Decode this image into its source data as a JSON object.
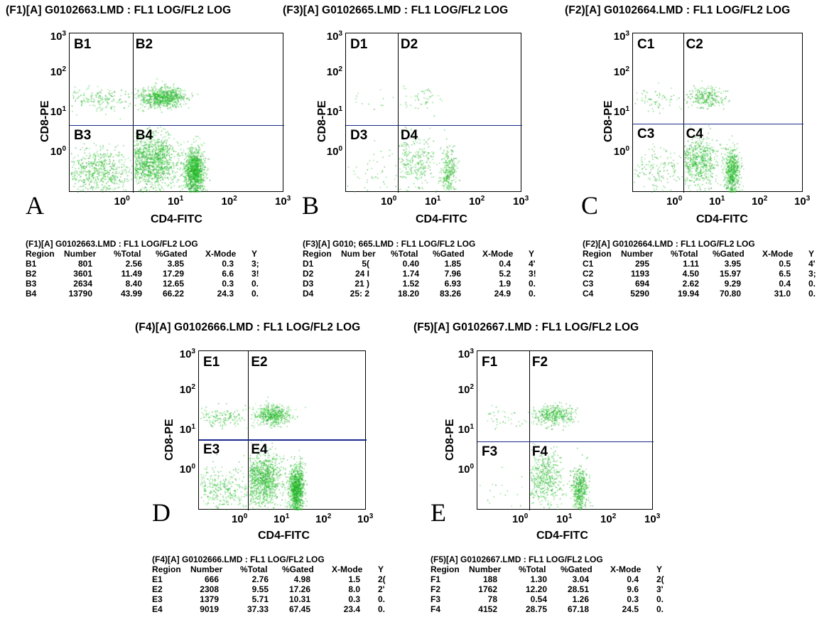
{
  "panels": [
    {
      "id": "A",
      "title": "(F1)[A] G0102663.LMD : FL1 LOG/FL2 LOG",
      "letter": "A",
      "quads": [
        "B1",
        "B2",
        "B3",
        "B4"
      ],
      "xlabel": "CD4-FITC",
      "ylabel": "CD8-PE",
      "table": {
        "title": "(F1)[A] G0102663.LMD : FL1 LOG/FL2 LOG",
        "headers": [
          "Region",
          "Number",
          "%Total",
          "%Gated",
          "X-Mode",
          "Y"
        ],
        "rows": [
          [
            "B1",
            "801",
            "2.56",
            "3.85",
            "0.3",
            "3;"
          ],
          [
            "B2",
            "3601",
            "11.49",
            "17.29",
            "6.6",
            "3!"
          ],
          [
            "B3",
            "2634",
            "8.40",
            "12.65",
            "0.3",
            "0."
          ],
          [
            "B4",
            "13790",
            "43.99",
            "66.22",
            "24.3",
            "0."
          ]
        ]
      }
    },
    {
      "id": "B",
      "title": "(F3)[A] G0102665.LMD : FL1 LOG/FL2 LOG",
      "letter": "B",
      "quads": [
        "D1",
        "D2",
        "D3",
        "D4"
      ],
      "xlabel": "CD4-FITC",
      "ylabel": "CD8-PE",
      "table": {
        "title": "(F3)[A] G010; 665.LMD : FL1 LOG/FL2 LOG",
        "headers": [
          "Region",
          "Num ber",
          "%Total",
          "%Gated",
          "X-Mode",
          "Y"
        ],
        "rows": [
          [
            "D1",
            "5(",
            "0.40",
            "1.85",
            "0.4",
            "4'"
          ],
          [
            "D2",
            "24 I",
            "1.74",
            "7.96",
            "5.2",
            "3!"
          ],
          [
            "D3",
            "21 )",
            "1.52",
            "6.93",
            "1.9",
            "0."
          ],
          [
            "D4",
            "25: 2",
            "18.20",
            "83.26",
            "24.9",
            "0."
          ]
        ]
      }
    },
    {
      "id": "C",
      "title": "(F2)[A] G0102664.LMD : FL1 LOG/FL2 LOG",
      "letter": "C",
      "quads": [
        "C1",
        "C2",
        "C3",
        "C4"
      ],
      "xlabel": "CD4-FITC",
      "ylabel": "CD8-PE",
      "table": {
        "title": "(F2)[A] G0102664.LMD : FL1 LOG/FL2 LOG",
        "headers": [
          "Region",
          "Number",
          "%Total",
          "%Gated",
          "X-Mode",
          "Y"
        ],
        "rows": [
          [
            "C1",
            "295",
            "1.11",
            "3.95",
            "0.5",
            "4'"
          ],
          [
            "C2",
            "1193",
            "4.50",
            "15.97",
            "6.5",
            "3;"
          ],
          [
            "C3",
            "694",
            "2.62",
            "9.29",
            "0.4",
            "0."
          ],
          [
            "C4",
            "5290",
            "19.94",
            "70.80",
            "31.0",
            "0."
          ]
        ]
      }
    },
    {
      "id": "D",
      "title": "(F4)[A] G0102666.LMD : FL1 LOG/FL2 LOG",
      "letter": "D",
      "quads": [
        "E1",
        "E2",
        "E3",
        "E4"
      ],
      "xlabel": "CD4-FITC",
      "ylabel": "CD8-PE",
      "table": {
        "title": "(F4)[A] G0102666.LMD : FL1 LOG/FL2 LOG",
        "headers": [
          "Region",
          "Number",
          "%Total",
          "%Gated",
          "X-Mode",
          "Y"
        ],
        "rows": [
          [
            "E1",
            "666",
            "2.76",
            "4.98",
            "1.5",
            "2("
          ],
          [
            "E2",
            "2308",
            "9.55",
            "17.26",
            "8.0",
            "2'"
          ],
          [
            "E3",
            "1379",
            "5.71",
            "10.31",
            "0.3",
            "0."
          ],
          [
            "E4",
            "9019",
            "37.33",
            "67.45",
            "23.4",
            "0."
          ]
        ]
      }
    },
    {
      "id": "E",
      "title": "(F5)[A] G0102667.LMD : FL1 LOG/FL2 LOG",
      "letter": "E",
      "quads": [
        "F1",
        "F2",
        "F3",
        "F4"
      ],
      "xlabel": "CD4-FITC",
      "ylabel": "CD8-PE",
      "table": {
        "title": "(F5)[A] G0102667.LMD : FL1 LOG/FL2 LOG",
        "headers": [
          "Region",
          "Number",
          "%Total",
          "%Gated",
          "X-Mode",
          "Y"
        ],
        "rows": [
          [
            "F1",
            "188",
            "1.30",
            "3.04",
            "0.4",
            "2("
          ],
          [
            "F2",
            "1762",
            "12.20",
            "28.51",
            "9.6",
            "3'"
          ],
          [
            "F3",
            "78",
            "0.54",
            "1.26",
            "0.3",
            "0."
          ],
          [
            "F4",
            "4152",
            "28.75",
            "67.18",
            "24.5",
            "0."
          ]
        ]
      }
    }
  ],
  "chart_data": [
    {
      "type": "scatter",
      "title": "(F1)[A] G0102663.LMD : FL1 LOG/FL2 LOG",
      "xlabel": "CD4-FITC",
      "ylabel": "CD8-PE",
      "x_scale": "log",
      "y_scale": "log",
      "xlim": [
        0.1,
        1000
      ],
      "ylim": [
        0.1,
        1000
      ],
      "x_ticks": [
        "10^0",
        "10^1",
        "10^2",
        "10^3"
      ],
      "y_ticks": [
        "10^0",
        "10^1",
        "10^2",
        "10^3"
      ],
      "quadrant_x": 1.5,
      "quadrant_y": 5,
      "quadrant_counts": {
        "B1": 801,
        "B2": 3601,
        "B3": 2634,
        "B4": 13790
      },
      "point_color": "#22aa22"
    },
    {
      "type": "scatter",
      "title": "(F3)[A] G0102665.LMD : FL1 LOG/FL2 LOG",
      "xlabel": "CD4-FITC",
      "ylabel": "CD8-PE",
      "x_scale": "log",
      "y_scale": "log",
      "xlim": [
        0.1,
        1000
      ],
      "ylim": [
        0.1,
        1000
      ],
      "x_ticks": [
        "10^0",
        "10^1",
        "10^2",
        "10^3"
      ],
      "y_ticks": [
        "10^0",
        "10^1",
        "10^2",
        "10^3"
      ],
      "quadrant_x": 1.5,
      "quadrant_y": 5,
      "quadrant_counts": {
        "D1": 50,
        "D2": 240,
        "D3": 210,
        "D4": 2522
      },
      "point_color": "#22aa22"
    },
    {
      "type": "scatter",
      "title": "(F2)[A] G0102664.LMD : FL1 LOG/FL2 LOG",
      "xlabel": "CD4-FITC",
      "ylabel": "CD8-PE",
      "x_scale": "log",
      "y_scale": "log",
      "xlim": [
        0.1,
        1000
      ],
      "ylim": [
        0.1,
        1000
      ],
      "x_ticks": [
        "10^0",
        "10^1",
        "10^2",
        "10^3"
      ],
      "y_ticks": [
        "10^0",
        "10^1",
        "10^2",
        "10^3"
      ],
      "quadrant_x": 1.5,
      "quadrant_y": 5.5,
      "quadrant_counts": {
        "C1": 295,
        "C2": 1193,
        "C3": 694,
        "C4": 5290
      },
      "point_color": "#22aa22"
    },
    {
      "type": "scatter",
      "title": "(F4)[A] G0102666.LMD : FL1 LOG/FL2 LOG",
      "xlabel": "CD4-FITC",
      "ylabel": "CD8-PE",
      "x_scale": "log",
      "y_scale": "log",
      "xlim": [
        0.1,
        1000
      ],
      "ylim": [
        0.1,
        1000
      ],
      "x_ticks": [
        "10^0",
        "10^1",
        "10^2",
        "10^3"
      ],
      "y_ticks": [
        "10^0",
        "10^1",
        "10^2",
        "10^3"
      ],
      "quadrant_x": 1.5,
      "quadrant_y": 6,
      "quadrant_counts": {
        "E1": 666,
        "E2": 2308,
        "E3": 1379,
        "E4": 9019
      },
      "point_color": "#22aa22"
    },
    {
      "type": "scatter",
      "title": "(F5)[A] G0102667.LMD : FL1 LOG/FL2 LOG",
      "xlabel": "CD4-FITC",
      "ylabel": "CD8-PE",
      "x_scale": "log",
      "y_scale": "log",
      "xlim": [
        0.1,
        1000
      ],
      "ylim": [
        0.1,
        1000
      ],
      "x_ticks": [
        "10^0",
        "10^1",
        "10^2",
        "10^3"
      ],
      "y_ticks": [
        "10^0",
        "10^1",
        "10^2",
        "10^3"
      ],
      "quadrant_x": 1.5,
      "quadrant_y": 5.5,
      "quadrant_counts": {
        "F1": 188,
        "F2": 1762,
        "F3": 78,
        "F4": 4152
      },
      "point_color": "#22aa22"
    }
  ]
}
